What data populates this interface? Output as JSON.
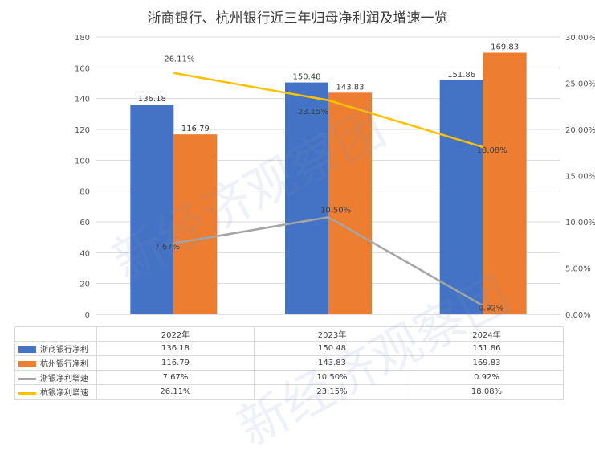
{
  "watermark": "新经济观察团",
  "chart_data": {
    "type": "bar",
    "title": "浙商银行、杭州银行近三年归母净利润及增速一览",
    "categories": [
      "2022年",
      "2023年",
      "2024年"
    ],
    "ylim": [
      0,
      180
    ],
    "yticks": [
      "0",
      "20",
      "40",
      "60",
      "80",
      "100",
      "120",
      "140",
      "160",
      "180"
    ],
    "y2lim": [
      0,
      30
    ],
    "y2ticks": [
      "0.00%",
      "5.00%",
      "10.00%",
      "15.00%",
      "20.00%",
      "25.00%",
      "30.00%"
    ],
    "grid": true,
    "legend": "data-table",
    "series": [
      {
        "name": "浙商银行净利",
        "kind": "bar",
        "axis": "left",
        "color": "#4472c4",
        "values": [
          136.18,
          150.48,
          151.86
        ],
        "labels": [
          "136.18",
          "150.48",
          "151.86"
        ]
      },
      {
        "name": "杭州银行净利",
        "kind": "bar",
        "axis": "left",
        "color": "#ed7d31",
        "values": [
          116.79,
          143.83,
          169.83
        ],
        "labels": [
          "116.79",
          "143.83",
          "169.83"
        ]
      },
      {
        "name": "浙银净利增速",
        "kind": "line",
        "axis": "right",
        "color": "#a5a5a5",
        "values": [
          7.67,
          10.5,
          0.92
        ],
        "labels": [
          "7.67%",
          "10.50%",
          "0.92%"
        ]
      },
      {
        "name": "杭银净利增速",
        "kind": "line",
        "axis": "right",
        "color": "#ffc000",
        "values": [
          26.11,
          23.15,
          18.08
        ],
        "labels": [
          "26.11%",
          "23.15%",
          "18.08%"
        ]
      }
    ]
  }
}
